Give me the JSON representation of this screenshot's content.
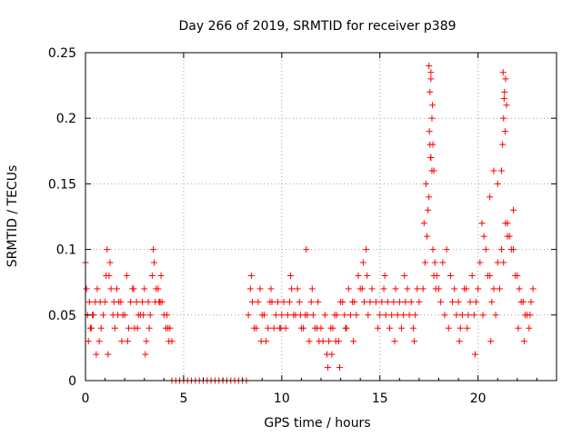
{
  "chart_data": {
    "type": "scatter",
    "title": "Day 266 of 2019, SRMTID for receiver p389",
    "xlabel": "GPS time / hours",
    "ylabel": "SRMTID / TECUs",
    "xlim": [
      0,
      24
    ],
    "ylim": [
      0,
      0.25
    ],
    "xticks": [
      0,
      5,
      10,
      15,
      20
    ],
    "yticks": [
      0,
      0.05,
      0.1,
      0.15,
      0.2,
      0.25
    ],
    "xtick_labels": [
      "0",
      "5",
      "10",
      "15",
      "20"
    ],
    "ytick_labels": [
      "0",
      "0.05",
      "0.1",
      "0.15",
      "0.2",
      "0.25"
    ],
    "grid": true,
    "marker": "+",
    "color": "#ff0000",
    "series": [
      {
        "name": "SRMTID",
        "x": [
          0.0,
          0.2,
          0.4,
          0.6,
          0.8,
          1.0,
          1.2,
          1.4,
          1.6,
          1.8,
          2.0,
          2.2,
          2.4,
          2.6,
          2.8,
          3.0,
          3.2,
          3.4,
          3.6,
          3.8,
          4.0,
          4.2,
          4.4,
          0.1,
          0.3,
          0.5,
          0.7,
          0.9,
          1.1,
          1.3,
          1.5,
          1.7,
          1.9,
          2.1,
          2.3,
          2.5,
          2.7,
          2.9,
          3.1,
          3.3,
          3.5,
          3.7,
          3.9,
          4.1,
          4.3,
          0.05,
          0.15,
          0.35,
          0.55,
          1.05,
          1.25,
          1.45,
          1.85,
          2.45,
          2.95,
          3.25,
          3.45,
          3.75,
          4.15,
          0.25,
          0.75,
          1.15,
          1.65,
          2.15,
          2.65,
          3.05,
          3.55,
          3.85,
          4.25,
          4.4,
          4.6,
          4.8,
          5.0,
          5.2,
          5.4,
          5.6,
          5.8,
          6.0,
          6.2,
          6.4,
          6.6,
          6.8,
          7.0,
          7.2,
          7.4,
          7.6,
          7.8,
          8.0,
          8.2,
          8.3,
          8.5,
          8.7,
          8.9,
          9.1,
          9.3,
          9.5,
          9.7,
          9.9,
          10.1,
          10.3,
          10.5,
          10.7,
          10.9,
          11.1,
          11.3,
          11.5,
          11.7,
          11.9,
          8.4,
          8.6,
          8.8,
          9.0,
          9.2,
          9.4,
          9.6,
          9.8,
          10.0,
          10.2,
          10.4,
          10.6,
          10.8,
          11.0,
          11.2,
          11.4,
          11.6,
          11.8,
          8.45,
          8.95,
          9.45,
          9.95,
          10.45,
          10.95,
          11.25,
          11.55,
          11.85,
          12.0,
          12.2,
          12.4,
          12.6,
          12.8,
          13.0,
          13.2,
          13.4,
          13.6,
          13.8,
          14.0,
          14.2,
          14.4,
          14.6,
          12.1,
          12.3,
          12.5,
          12.7,
          12.9,
          13.1,
          13.3,
          13.5,
          13.7,
          13.9,
          14.1,
          14.3,
          14.5,
          12.35,
          12.55,
          12.75,
          12.95,
          13.25,
          13.65,
          14.15,
          14.35,
          14.8,
          15.0,
          15.2,
          15.4,
          15.6,
          15.8,
          16.0,
          16.2,
          16.4,
          16.6,
          16.8,
          17.0,
          14.9,
          15.1,
          15.3,
          15.5,
          15.7,
          15.9,
          16.1,
          16.3,
          16.5,
          16.7,
          16.9,
          15.25,
          15.75,
          16.25,
          16.75,
          17.2,
          17.3,
          17.4,
          17.5,
          17.6,
          17.7,
          17.8,
          17.9,
          18.0,
          18.2,
          18.4,
          18.6,
          18.8,
          17.25,
          17.35,
          17.45,
          17.55,
          17.65,
          17.75,
          17.85,
          18.1,
          18.3,
          18.5,
          18.7,
          18.9,
          17.5,
          17.55,
          17.6,
          17.65,
          17.7,
          17.75,
          17.6,
          17.68,
          17.52,
          17.58,
          19.0,
          19.2,
          19.4,
          19.6,
          19.8,
          20.0,
          20.2,
          20.4,
          20.6,
          20.8,
          19.1,
          19.3,
          19.5,
          19.7,
          19.9,
          20.1,
          20.3,
          20.5,
          20.7,
          20.9,
          19.05,
          19.45,
          19.85,
          20.25,
          20.65,
          21.0,
          21.2,
          21.4,
          21.6,
          21.8,
          22.0,
          22.2,
          22.4,
          22.6,
          22.8,
          21.1,
          21.3,
          21.5,
          21.7,
          21.9,
          22.1,
          22.3,
          22.5,
          22.7,
          21.2,
          21.25,
          21.3,
          21.35,
          21.4,
          21.45,
          21.28,
          21.33,
          21.38,
          20.6,
          20.8,
          21.0,
          21.5,
          21.8,
          22.05,
          22.35,
          22.65
        ],
        "y": [
          0.09,
          0.06,
          0.05,
          0.07,
          0.04,
          0.06,
          0.08,
          0.05,
          0.07,
          0.06,
          0.05,
          0.04,
          0.07,
          0.06,
          0.05,
          0.07,
          0.06,
          0.08,
          0.07,
          0.06,
          0.05,
          0.04,
          0.03,
          0.05,
          0.04,
          0.06,
          0.03,
          0.05,
          0.1,
          0.07,
          0.04,
          0.06,
          0.05,
          0.08,
          0.06,
          0.04,
          0.05,
          0.06,
          0.03,
          0.05,
          0.09,
          0.07,
          0.06,
          0.04,
          0.04,
          0.07,
          0.03,
          0.05,
          0.02,
          0.08,
          0.09,
          0.06,
          0.03,
          0.07,
          0.05,
          0.04,
          0.1,
          0.06,
          0.05,
          0.04,
          0.06,
          0.02,
          0.05,
          0.03,
          0.04,
          0.02,
          0.06,
          0.08,
          0.03,
          0,
          0,
          0,
          0,
          0,
          0,
          0,
          0,
          0,
          0,
          0,
          0,
          0,
          0,
          0,
          0,
          0,
          0,
          0,
          0,
          0.05,
          0.06,
          0.04,
          0.07,
          0.05,
          0.04,
          0.06,
          0.05,
          0.04,
          0.06,
          0.05,
          0.07,
          0.05,
          0.06,
          0.04,
          0.05,
          0.06,
          0.04,
          0.03,
          0.07,
          0.04,
          0.06,
          0.05,
          0.03,
          0.06,
          0.04,
          0.06,
          0.05,
          0.04,
          0.06,
          0.05,
          0.07,
          0.04,
          0.05,
          0.03,
          0.05,
          0.04,
          0.08,
          0.03,
          0.07,
          0.04,
          0.08,
          0.05,
          0.1,
          0.07,
          0.06,
          0.04,
          0.05,
          0.03,
          0.04,
          0.05,
          0.06,
          0.05,
          0.07,
          0.06,
          0.05,
          0.07,
          0.06,
          0.05,
          0.07,
          0.03,
          0.02,
          0.04,
          0.05,
          0.03,
          0.06,
          0.04,
          0.05,
          0.06,
          0.08,
          0.07,
          0.1,
          0.06,
          0.01,
          0.02,
          0.03,
          0.01,
          0.04,
          0.03,
          0.09,
          0.08,
          0.06,
          0.05,
          0.07,
          0.06,
          0.05,
          0.07,
          0.06,
          0.05,
          0.07,
          0.06,
          0.05,
          0.06,
          0.04,
          0.06,
          0.05,
          0.04,
          0.06,
          0.05,
          0.04,
          0.06,
          0.05,
          0.04,
          0.07,
          0.08,
          0.03,
          0.08,
          0.03,
          0.07,
          0.09,
          0.11,
          0.14,
          0.17,
          0.1,
          0.09,
          0.08,
          0.07,
          0.09,
          0.1,
          0.08,
          0.07,
          0.12,
          0.15,
          0.13,
          0.18,
          0.16,
          0.08,
          0.07,
          0.06,
          0.05,
          0.04,
          0.06,
          0.05,
          0.24,
          0.22,
          0.23,
          0.2,
          0.18,
          0.16,
          0.235,
          0.21,
          0.19,
          0.17,
          0.06,
          0.05,
          0.07,
          0.06,
          0.05,
          0.07,
          0.12,
          0.1,
          0.08,
          0.07,
          0.04,
          0.07,
          0.05,
          0.08,
          0.06,
          0.09,
          0.11,
          0.08,
          0.06,
          0.05,
          0.03,
          0.04,
          0.02,
          0.05,
          0.03,
          0.09,
          0.1,
          0.12,
          0.11,
          0.1,
          0.08,
          0.06,
          0.05,
          0.04,
          0.07,
          0.07,
          0.09,
          0.11,
          0.1,
          0.08,
          0.07,
          0.06,
          0.05,
          0.06,
          0.16,
          0.18,
          0.2,
          0.22,
          0.23,
          0.21,
          0.235,
          0.215,
          0.19,
          0.14,
          0.16,
          0.15,
          0.12,
          0.13,
          0.04,
          0.03,
          0.05
        ]
      }
    ]
  }
}
